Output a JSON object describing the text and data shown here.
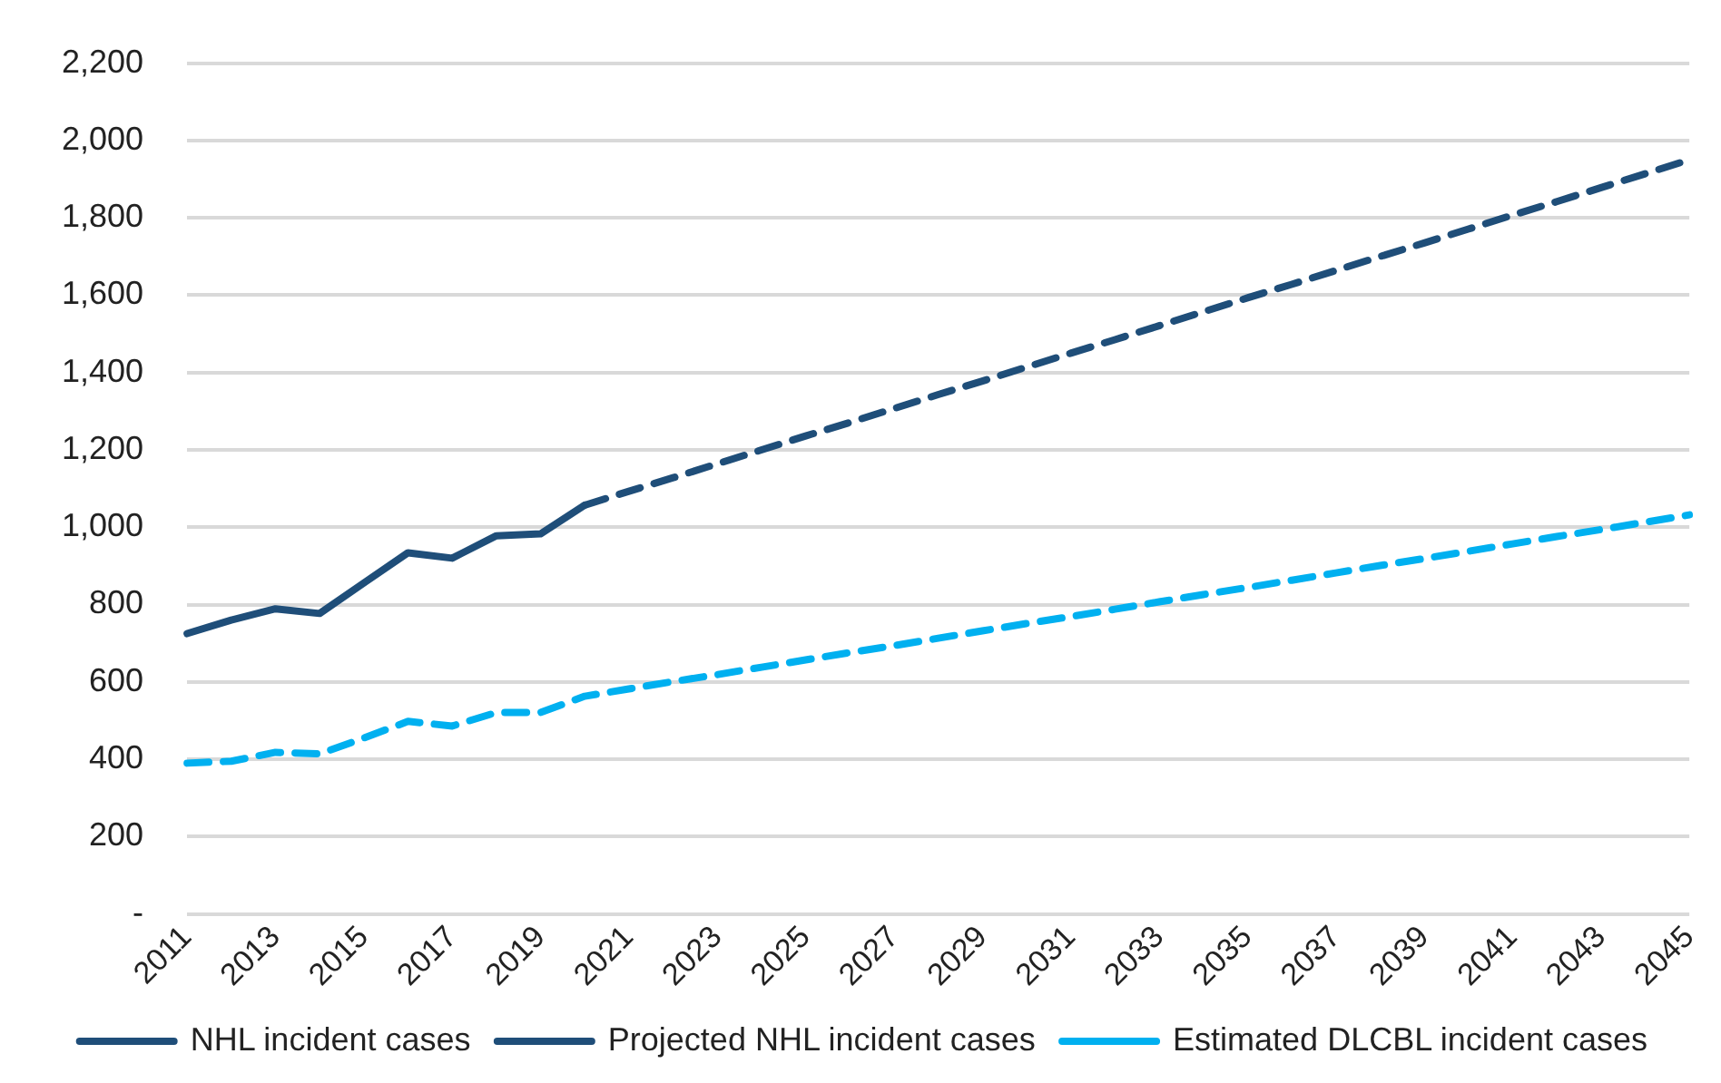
{
  "chart_data": {
    "type": "line",
    "categories": [
      "2011",
      null,
      "2013",
      null,
      "2015",
      null,
      "2017",
      null,
      "2019",
      null,
      "2021",
      null,
      "2023",
      null,
      "2025",
      null,
      "2027",
      null,
      "2029",
      null,
      "2031",
      null,
      "2033",
      null,
      "2035",
      null,
      "2037",
      null,
      "2039",
      null,
      "2041",
      null,
      "2043",
      null,
      "2045"
    ],
    "series": [
      {
        "name": "NHL incident cases",
        "color": "#1f4e79",
        "line_style": "solid",
        "values": [
          725,
          760,
          789,
          777,
          856,
          934,
          920,
          978,
          983,
          1057,
          null,
          null,
          null,
          null,
          null,
          null,
          null,
          null,
          null,
          null,
          null,
          null,
          null,
          null,
          null,
          null,
          null,
          null,
          null,
          null,
          null,
          null,
          null,
          null,
          null
        ]
      },
      {
        "name": "Projected NHL incident cases",
        "color": "#1f4e79",
        "line_style": "dashed",
        "values": [
          null,
          null,
          null,
          null,
          null,
          null,
          null,
          null,
          null,
          1057,
          1093,
          1128,
          1164,
          1200,
          1236,
          1271,
          1307,
          1343,
          1378,
          1414,
          1450,
          1485,
          1521,
          1557,
          1593,
          1628,
          1664,
          1700,
          1735,
          1771,
          1807,
          1842,
          1878,
          1914,
          1950
        ]
      },
      {
        "name": "Estimated DLCBL incident cases",
        "color": "#00b0f0",
        "line_style": "dashed",
        "values": [
          390,
          395,
          418,
          414,
          455,
          498,
          486,
          521,
          521,
          563,
          582,
          601,
          619,
          638,
          657,
          676,
          694,
          713,
          732,
          751,
          769,
          788,
          807,
          826,
          844,
          863,
          882,
          901,
          919,
          938,
          957,
          976,
          994,
          1013,
          1032
        ]
      }
    ],
    "ylim": [
      0,
      2200
    ],
    "yticks": [
      {
        "value": 0,
        "label": "-"
      },
      200,
      400,
      600,
      800,
      {
        "value": 1000,
        "label": "1,000"
      },
      {
        "value": 1200,
        "label": "1,200"
      },
      {
        "value": 1400,
        "label": "1,400"
      },
      {
        "value": 1600,
        "label": "1,600"
      },
      {
        "value": 1800,
        "label": "1,800"
      },
      {
        "value": 2000,
        "label": "2,000"
      },
      {
        "value": 2200,
        "label": "2,200"
      }
    ],
    "grid": "y",
    "legend": "bottom",
    "marker": "none"
  }
}
